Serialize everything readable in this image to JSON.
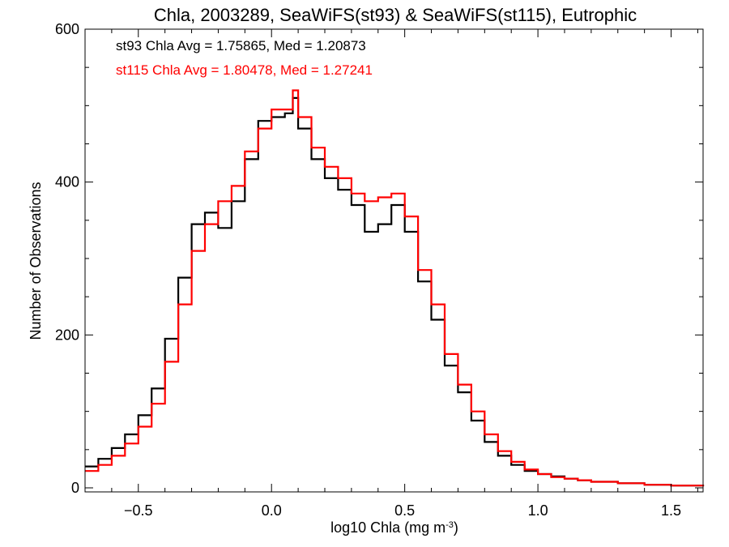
{
  "chart_data": {
    "type": "line",
    "title": "Chla, 2003289, SeaWiFS(st93) & SeaWiFS(st115), Eutrophic",
    "xlabel": "log10 Chla (mg m",
    "xlabel_sup": "-3",
    "xlabel_end": ")",
    "ylabel": "Number of Observations",
    "xlim": [
      -0.7,
      1.62
    ],
    "ylim": [
      0,
      600
    ],
    "x_ticks": [
      -0.5,
      0.0,
      0.5,
      1.0,
      1.5
    ],
    "x_tick_labels": [
      "−0.5",
      "0.0",
      "0.5",
      "1.0",
      "1.5"
    ],
    "y_ticks": [
      0,
      200,
      400,
      600
    ],
    "y_tick_labels": [
      "0",
      "200",
      "400",
      "600"
    ],
    "grid": false,
    "annotations": [
      {
        "text": "st93 Chla Avg = 1.75865, Med = 1.20873",
        "color": "#000000"
      },
      {
        "text": "st115 Chla Avg = 1.80478, Med = 1.27241",
        "color": "#ff0000"
      }
    ],
    "series": [
      {
        "color": "#000000",
        "x": [
          -0.7,
          -0.65,
          -0.6,
          -0.55,
          -0.5,
          -0.45,
          -0.4,
          -0.35,
          -0.3,
          -0.25,
          -0.2,
          -0.15,
          -0.1,
          -0.05,
          0.0,
          0.05,
          0.08,
          0.1,
          0.15,
          0.2,
          0.25,
          0.3,
          0.35,
          0.4,
          0.45,
          0.5,
          0.55,
          0.6,
          0.65,
          0.7,
          0.75,
          0.8,
          0.85,
          0.9,
          0.95,
          1.0,
          1.05,
          1.1,
          1.15,
          1.2,
          1.3,
          1.4,
          1.5,
          1.62
        ],
        "y": [
          28,
          38,
          52,
          70,
          95,
          130,
          195,
          275,
          345,
          360,
          340,
          375,
          430,
          480,
          485,
          490,
          510,
          470,
          430,
          405,
          390,
          370,
          335,
          345,
          370,
          335,
          270,
          220,
          160,
          125,
          88,
          60,
          42,
          30,
          22,
          18,
          15,
          12,
          10,
          8,
          6,
          4,
          3,
          2
        ]
      },
      {
        "color": "#ff0000",
        "x": [
          -0.7,
          -0.65,
          -0.6,
          -0.55,
          -0.5,
          -0.45,
          -0.4,
          -0.35,
          -0.3,
          -0.25,
          -0.2,
          -0.15,
          -0.1,
          -0.05,
          0.0,
          0.05,
          0.08,
          0.1,
          0.15,
          0.2,
          0.25,
          0.3,
          0.35,
          0.4,
          0.45,
          0.5,
          0.55,
          0.6,
          0.65,
          0.7,
          0.75,
          0.8,
          0.85,
          0.9,
          0.95,
          1.0,
          1.05,
          1.1,
          1.15,
          1.2,
          1.3,
          1.4,
          1.5,
          1.62
        ],
        "y": [
          22,
          30,
          42,
          58,
          80,
          110,
          165,
          240,
          310,
          345,
          375,
          395,
          440,
          470,
          495,
          495,
          520,
          485,
          445,
          420,
          405,
          385,
          375,
          380,
          385,
          355,
          285,
          240,
          175,
          135,
          100,
          70,
          48,
          34,
          24,
          18,
          14,
          12,
          10,
          8,
          6,
          4,
          3,
          2
        ]
      }
    ]
  }
}
